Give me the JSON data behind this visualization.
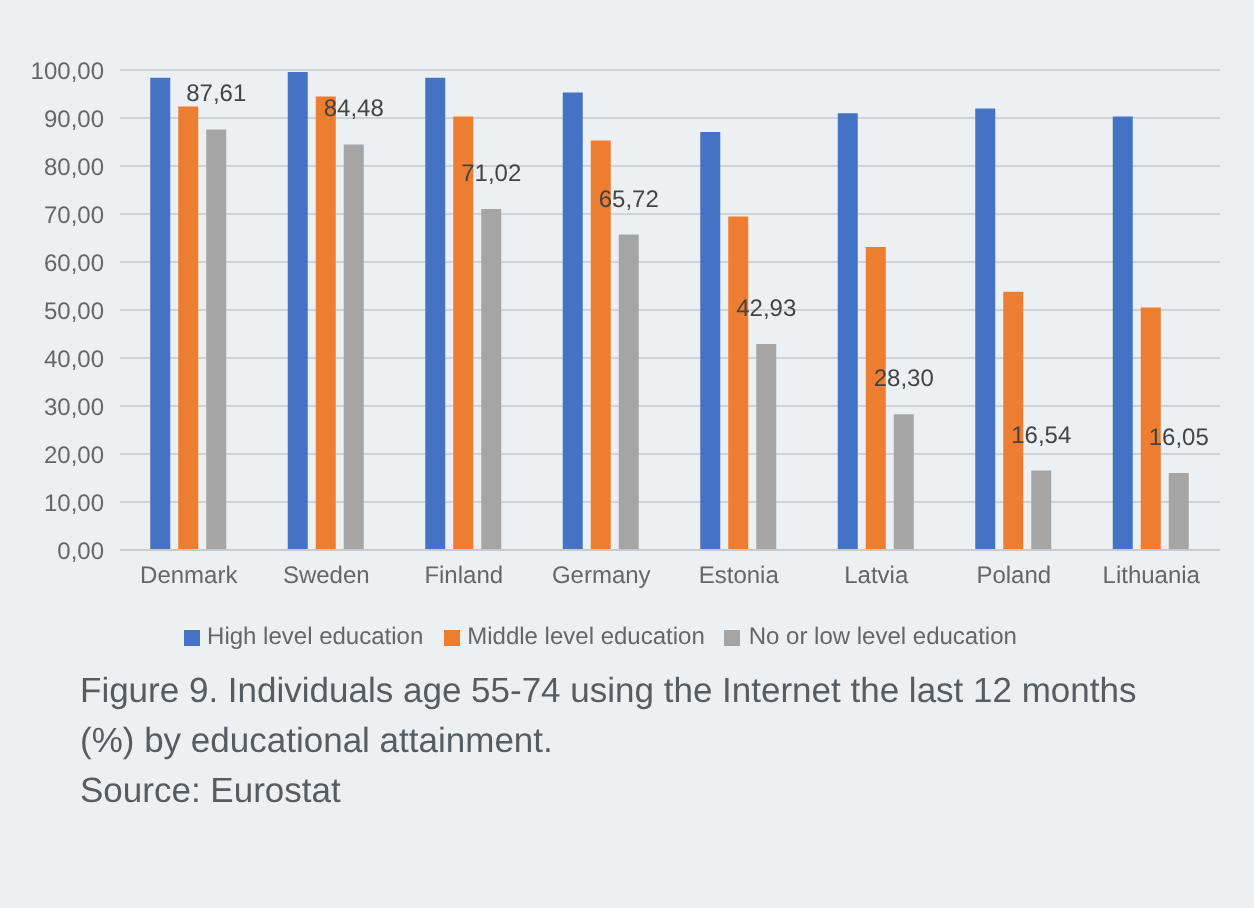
{
  "chart_data": {
    "type": "bar",
    "title": "Figure 9. Individuals age 55-74 using the Internet the last 12 months (%) by educational attainment.",
    "annotations": [
      "Source: Eurostat"
    ],
    "categories": [
      "Denmark",
      "Sweden",
      "Finland",
      "Germany",
      "Estonia",
      "Latvia",
      "Poland",
      "Lithuania"
    ],
    "series": [
      {
        "name": "High level education",
        "color": "#4472c4",
        "values": [
          98.4,
          99.6,
          98.4,
          95.3,
          87.1,
          91.0,
          92.0,
          90.3
        ]
      },
      {
        "name": "Middle level education",
        "color": "#ed7d31",
        "values": [
          92.4,
          94.5,
          90.3,
          85.3,
          69.5,
          63.1,
          53.8,
          50.5
        ]
      },
      {
        "name": "No or low level education",
        "color": "#a5a5a5",
        "values": [
          87.61,
          84.48,
          71.02,
          65.72,
          42.93,
          28.3,
          16.54,
          16.05
        ],
        "value_labels": [
          "87,61",
          "84,48",
          "71,02",
          "65,72",
          "42,93",
          "28,30",
          "16,54",
          "16,05"
        ]
      }
    ],
    "ylim": [
      0,
      100
    ],
    "yticks": [
      {
        "value": 0,
        "label": "0,00"
      },
      {
        "value": 10,
        "label": "10,00"
      },
      {
        "value": 20,
        "label": "20,00"
      },
      {
        "value": 30,
        "label": "30,00"
      },
      {
        "value": 40,
        "label": "40,00"
      },
      {
        "value": 50,
        "label": "50,00"
      },
      {
        "value": 60,
        "label": "60,00"
      },
      {
        "value": 70,
        "label": "70,00"
      },
      {
        "value": 80,
        "label": "80,00"
      },
      {
        "value": 90,
        "label": "90,00"
      },
      {
        "value": 100,
        "label": "100,00"
      }
    ],
    "grid": "y",
    "legend": "bottom"
  }
}
